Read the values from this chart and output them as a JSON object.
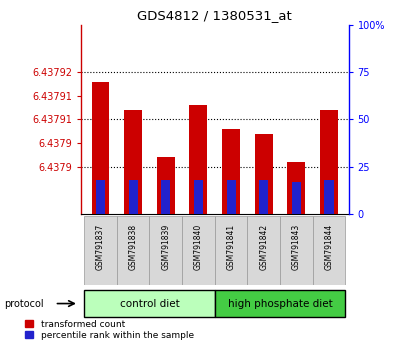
{
  "title": "GDS4812 / 1380531_at",
  "samples": [
    "GSM791837",
    "GSM791838",
    "GSM791839",
    "GSM791840",
    "GSM791841",
    "GSM791842",
    "GSM791843",
    "GSM791844"
  ],
  "transformed_count": [
    6.437918,
    6.437912,
    6.437902,
    6.437913,
    6.437908,
    6.437907,
    6.437901,
    6.437912
  ],
  "percentile_rank": [
    18,
    18,
    18,
    18,
    18,
    18,
    17,
    18
  ],
  "ymin": 6.43789,
  "ymax": 6.43793,
  "ytick_positions": [
    6.4379,
    6.437905,
    6.43791,
    6.437915,
    6.43792
  ],
  "ytick_labels": [
    "6.4379",
    "6.4379",
    "6.43791",
    "6.43791",
    "6.43792"
  ],
  "grid_pcts": [
    25,
    50,
    75
  ],
  "right_yticks": [
    0,
    25,
    50,
    75,
    100
  ],
  "right_ytick_labels": [
    "0",
    "25",
    "50",
    "75",
    "100%"
  ],
  "red_color": "#cc0000",
  "blue_color": "#2222cc",
  "bar_width": 0.55,
  "blue_bar_width": 0.28,
  "groups": [
    {
      "label": "control diet",
      "start": 0,
      "end": 4,
      "color": "#bbffbb"
    },
    {
      "label": "high phosphate diet",
      "start": 4,
      "end": 8,
      "color": "#44cc44"
    }
  ],
  "protocol_label": "protocol",
  "legend_items": [
    {
      "label": "transformed count",
      "color": "#cc0000"
    },
    {
      "label": "percentile rank within the sample",
      "color": "#2222cc"
    }
  ]
}
